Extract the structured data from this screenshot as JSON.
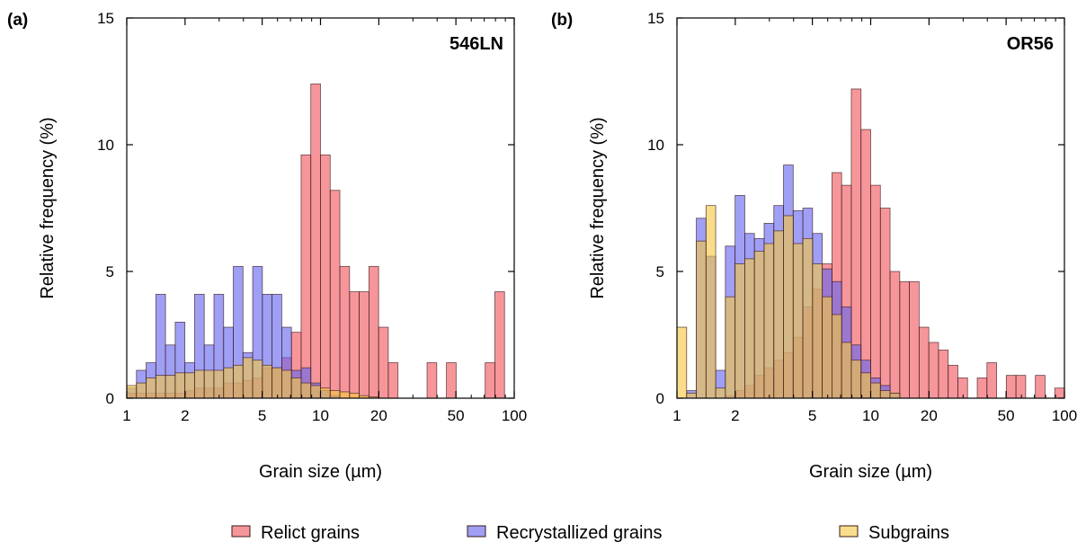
{
  "chart_data": [
    {
      "type": "bar",
      "panel_label": "(a)",
      "sample_label": "546LN",
      "xlabel": "Grain size (µm)",
      "ylabel": "Relative frequency (%)",
      "xscale": "log",
      "xlim": [
        1,
        100
      ],
      "ylim": [
        0,
        15
      ],
      "xticks": [
        1,
        2,
        5,
        10,
        20,
        50,
        100
      ],
      "yticks": [
        0,
        5,
        10,
        15
      ],
      "bins": 40,
      "grid": false,
      "series": [
        {
          "name": "Relict grains",
          "color": "#f0565d",
          "values": [
            0.2,
            0.2,
            0.2,
            0.2,
            0.2,
            0.2,
            0.3,
            0.4,
            0.4,
            0.4,
            0.6,
            0.6,
            0.7,
            0.8,
            1.2,
            1.2,
            1.6,
            2.6,
            9.6,
            12.4,
            9.6,
            8.2,
            5.2,
            4.2,
            4.2,
            5.2,
            2.8,
            1.4,
            0,
            0,
            0,
            1.4,
            0,
            1.4,
            0,
            0,
            0,
            1.4,
            4.2,
            0
          ]
        },
        {
          "name": "Recrystallized grains",
          "color": "#6464f0",
          "values": [
            0.4,
            1.1,
            1.4,
            4.1,
            2.1,
            3.0,
            1.4,
            4.1,
            2.1,
            4.1,
            2.8,
            5.2,
            1.8,
            5.2,
            4.1,
            4.1,
            2.8,
            1.1,
            1.2,
            0.6,
            0.3,
            0.1,
            0,
            0,
            0,
            0,
            0,
            0,
            0,
            0,
            0,
            0,
            0,
            0,
            0,
            0,
            0,
            0,
            0,
            0
          ]
        },
        {
          "name": "Subgrains",
          "color": "#f5c842",
          "values": [
            0.5,
            0.6,
            0.8,
            0.9,
            0.9,
            1.0,
            1.0,
            1.1,
            1.1,
            1.1,
            1.2,
            1.3,
            1.6,
            1.5,
            1.3,
            1.2,
            1.1,
            0.8,
            0.6,
            0.5,
            0.4,
            0.3,
            0.25,
            0.2,
            0.1,
            0.05,
            0,
            0,
            0,
            0,
            0,
            0,
            0,
            0,
            0,
            0,
            0,
            0,
            0,
            0
          ]
        }
      ]
    },
    {
      "type": "bar",
      "panel_label": "(b)",
      "sample_label": "OR56",
      "xlabel": "Grain size (µm)",
      "ylabel": "Relative frequency (%)",
      "xscale": "log",
      "xlim": [
        1,
        100
      ],
      "ylim": [
        0,
        15
      ],
      "xticks": [
        1,
        2,
        5,
        10,
        20,
        50,
        100
      ],
      "yticks": [
        0,
        5,
        10,
        15
      ],
      "bins": 40,
      "grid": false,
      "series": [
        {
          "name": "Relict grains",
          "color": "#f0565d",
          "values": [
            0,
            0,
            0,
            0,
            0,
            0.1,
            0.3,
            0.5,
            0.9,
            1.2,
            1.5,
            1.8,
            2.4,
            3.6,
            4.3,
            5.3,
            8.9,
            8.4,
            12.2,
            10.6,
            8.4,
            7.5,
            5.0,
            4.6,
            4.6,
            2.8,
            2.2,
            1.9,
            1.3,
            0.8,
            0,
            0.8,
            1.4,
            0,
            0.9,
            0.9,
            0,
            0.9,
            0,
            0.4
          ]
        },
        {
          "name": "Recrystallized grains",
          "color": "#6464f0",
          "values": [
            0,
            0.3,
            7.1,
            5.6,
            1.1,
            6.0,
            8.0,
            6.5,
            6.3,
            6.9,
            7.6,
            9.2,
            7.4,
            7.5,
            6.5,
            5.1,
            4.6,
            3.6,
            2.1,
            1.5,
            0.8,
            0.5,
            0.2,
            0,
            0,
            0,
            0,
            0,
            0,
            0,
            0,
            0,
            0,
            0,
            0,
            0,
            0,
            0,
            0,
            0
          ]
        },
        {
          "name": "Subgrains",
          "color": "#f5c842",
          "values": [
            2.8,
            0.2,
            6.2,
            7.6,
            0.4,
            4.0,
            5.3,
            5.5,
            5.8,
            6.1,
            6.6,
            7.2,
            6.1,
            6.3,
            5.3,
            4.0,
            3.3,
            2.2,
            1.5,
            1.0,
            0.6,
            0.3,
            0.2,
            0,
            0,
            0,
            0,
            0,
            0,
            0,
            0,
            0,
            0,
            0,
            0,
            0,
            0,
            0,
            0,
            0
          ]
        }
      ]
    }
  ],
  "legend": [
    {
      "label": "Relict grains",
      "color": "#f0565d"
    },
    {
      "label": "Recrystallized grains",
      "color": "#6464f0"
    },
    {
      "label": "Subgrains",
      "color": "#f5c842"
    }
  ]
}
